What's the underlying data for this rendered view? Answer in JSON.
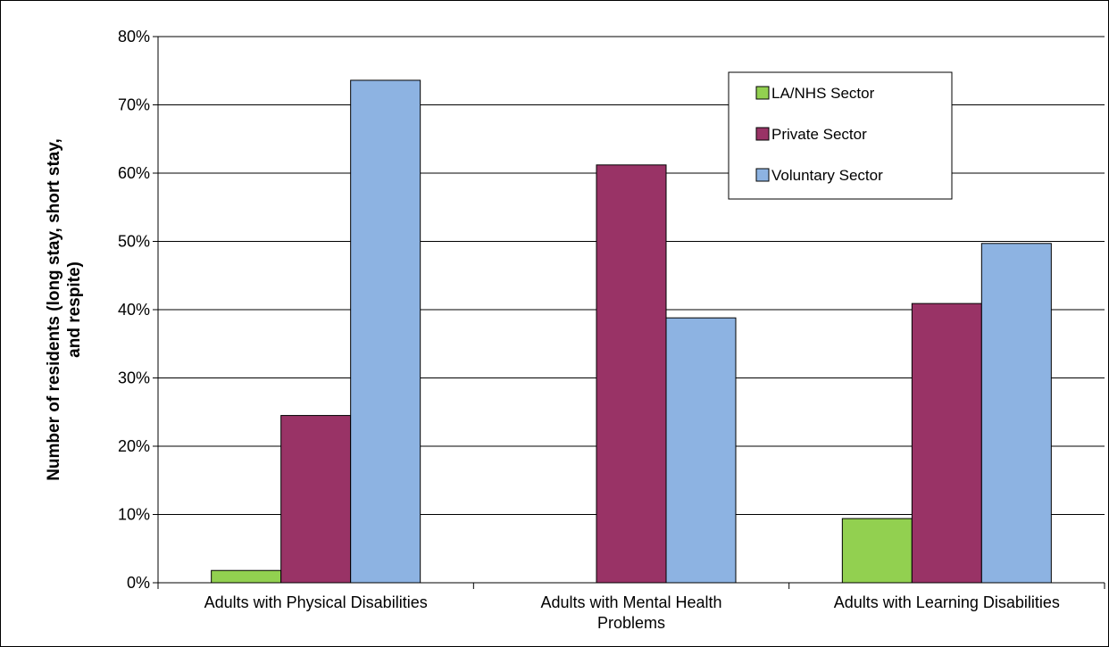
{
  "chart_data": {
    "type": "bar",
    "categories": [
      "Adults with Physical Disabilities",
      "Adults with Mental Health Problems",
      "Adults with Learning Disabilities"
    ],
    "category_label_lines": [
      [
        "Adults with Physical Disabilities"
      ],
      [
        "Adults with Mental Health",
        "Problems"
      ],
      [
        "Adults with Learning Disabilities"
      ]
    ],
    "series": [
      {
        "name": "LA/NHS Sector",
        "values": [
          1.8,
          0,
          9.4
        ],
        "color": "#92d050"
      },
      {
        "name": "Private Sector",
        "values": [
          24.5,
          61.2,
          40.9
        ],
        "color": "#993366"
      },
      {
        "name": "Voluntary Sector",
        "values": [
          73.6,
          38.8,
          49.7
        ],
        "color": "#8db3e2"
      }
    ],
    "ylabel_lines": [
      "Number of residents (long stay, short stay,",
      "and respite)"
    ],
    "yticks": [
      0,
      10,
      20,
      30,
      40,
      50,
      60,
      70,
      80
    ],
    "ytick_labels": [
      "0%",
      "10%",
      "20%",
      "30%",
      "40%",
      "50%",
      "60%",
      "70%",
      "80%"
    ],
    "ylim": [
      0,
      80
    ],
    "grid": true,
    "legend_position": "top-right"
  }
}
